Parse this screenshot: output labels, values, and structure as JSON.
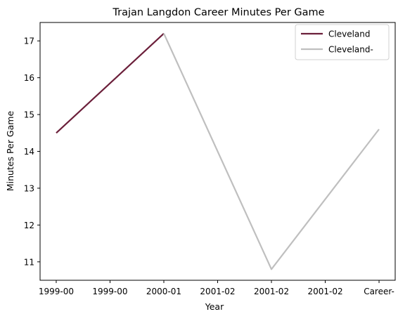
{
  "chart_data": {
    "type": "line",
    "title": "Trajan Langdon Career Minutes Per Game",
    "xlabel": "Year",
    "ylabel": "Minutes Per Game",
    "x_ticks": [
      "1999-00",
      "1999-00",
      "2000-01",
      "2001-02",
      "2001-02",
      "2001-02",
      "Career-"
    ],
    "y_ticks": [
      11,
      12,
      13,
      14,
      15,
      16,
      17
    ],
    "ylim": [
      10.5,
      17.5
    ],
    "xlim": [
      -0.3,
      6.3
    ],
    "grid": false,
    "legend_position": "top-right",
    "series": [
      {
        "name": "Cleveland",
        "color": "#6b1f3a",
        "x": [
          0,
          2
        ],
        "y": [
          14.5,
          17.2
        ]
      },
      {
        "name": "Cleveland-",
        "color": "#bfbfbf",
        "x": [
          2,
          4,
          6
        ],
        "y": [
          17.2,
          10.8,
          14.6
        ]
      }
    ]
  }
}
